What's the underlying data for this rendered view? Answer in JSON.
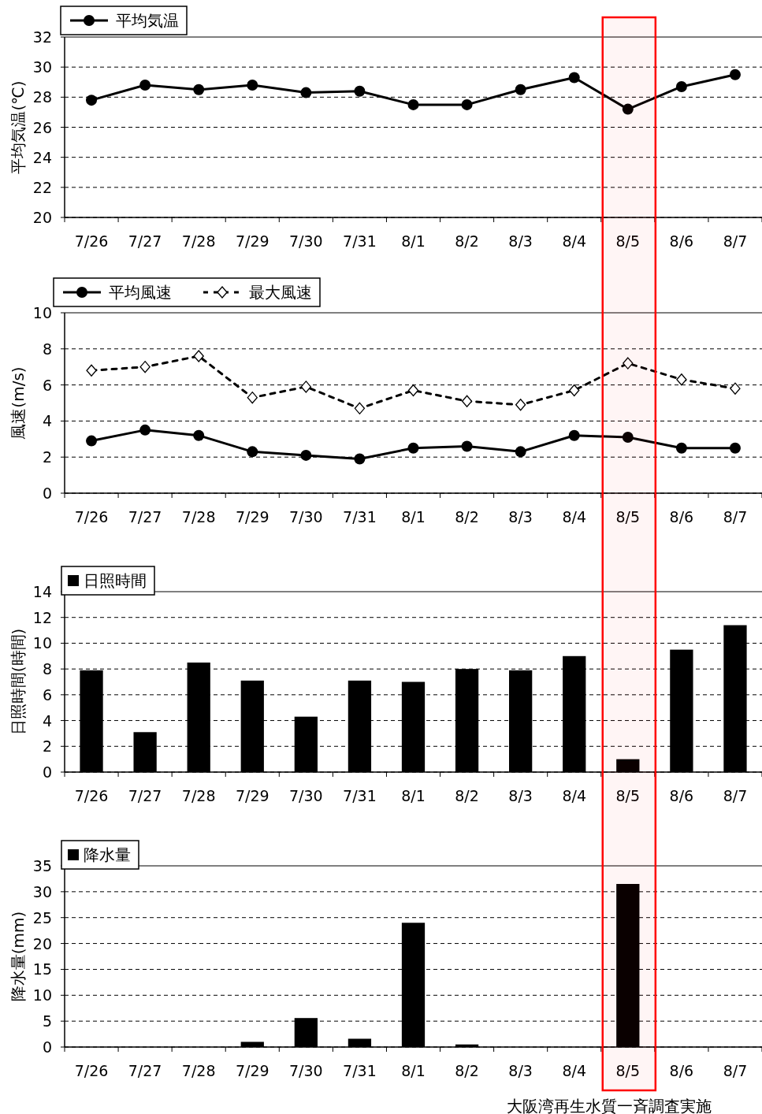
{
  "chart_data": [
    {
      "type": "line",
      "categories": [
        "7/26",
        "7/27",
        "7/28",
        "7/29",
        "7/30",
        "7/31",
        "8/1",
        "8/2",
        "8/3",
        "8/4",
        "8/5",
        "8/6",
        "8/7"
      ],
      "ylabel": "平均気温(℃)",
      "ylim": [
        20,
        32
      ],
      "yticks": [
        20,
        22,
        24,
        26,
        28,
        30,
        32
      ],
      "grid": "y",
      "legend": "top left",
      "series": [
        {
          "name": "平均気温",
          "color": "#000000",
          "marker": "circle",
          "line_style": "solid",
          "values": [
            27.8,
            28.8,
            28.5,
            28.8,
            28.3,
            28.4,
            27.5,
            27.5,
            28.5,
            29.3,
            27.2,
            28.7,
            29.5
          ]
        }
      ]
    },
    {
      "type": "line",
      "categories": [
        "7/26",
        "7/27",
        "7/28",
        "7/29",
        "7/30",
        "7/31",
        "8/1",
        "8/2",
        "8/3",
        "8/4",
        "8/5",
        "8/6",
        "8/7"
      ],
      "ylabel": "風速(m/s)",
      "ylim": [
        0,
        10
      ],
      "yticks": [
        0,
        2,
        4,
        6,
        8,
        10
      ],
      "grid": "y",
      "legend": "top left",
      "series": [
        {
          "name": "平均風速",
          "color": "#000000",
          "marker": "circle",
          "line_style": "solid",
          "values": [
            2.9,
            3.5,
            3.2,
            2.3,
            2.1,
            1.9,
            2.5,
            2.6,
            2.3,
            3.2,
            3.1,
            2.5,
            2.5
          ]
        },
        {
          "name": "最大風速",
          "color": "#000000",
          "marker": "diamond",
          "line_style": "dashed",
          "values": [
            6.8,
            7.0,
            7.6,
            5.3,
            5.9,
            4.7,
            5.7,
            5.1,
            4.9,
            5.7,
            7.2,
            6.3,
            5.8
          ]
        }
      ]
    },
    {
      "type": "bar",
      "categories": [
        "7/26",
        "7/27",
        "7/28",
        "7/29",
        "7/30",
        "7/31",
        "8/1",
        "8/2",
        "8/3",
        "8/4",
        "8/5",
        "8/6",
        "8/7"
      ],
      "ylabel": "日照時間(時間)",
      "ylim": [
        0,
        14
      ],
      "yticks": [
        0,
        2,
        4,
        6,
        8,
        10,
        12,
        14
      ],
      "grid": "y",
      "legend": "top left",
      "series": [
        {
          "name": "日照時間",
          "color": "#000000",
          "values": [
            7.9,
            3.1,
            8.5,
            7.1,
            4.3,
            7.1,
            7.0,
            8.0,
            7.9,
            9.0,
            1.0,
            9.5,
            11.4
          ]
        }
      ]
    },
    {
      "type": "bar",
      "categories": [
        "7/26",
        "7/27",
        "7/28",
        "7/29",
        "7/30",
        "7/31",
        "8/1",
        "8/2",
        "8/3",
        "8/4",
        "8/5",
        "8/6",
        "8/7"
      ],
      "ylabel": "降水量(mm)",
      "ylim": [
        0,
        35
      ],
      "yticks": [
        0,
        5,
        10,
        15,
        20,
        25,
        30,
        35
      ],
      "grid": "y",
      "legend": "top left",
      "series": [
        {
          "name": "降水量",
          "color": "#000000",
          "values": [
            0,
            0,
            0,
            1.0,
            5.6,
            1.6,
            24.0,
            0.5,
            0,
            0,
            31.5,
            0,
            0
          ]
        }
      ],
      "bands": [
        {
          "axis": "x",
          "from": "8/5",
          "to": "8/5",
          "label": "大阪湾再生水質一斉調査実施",
          "color": "#ff0000"
        }
      ]
    }
  ]
}
